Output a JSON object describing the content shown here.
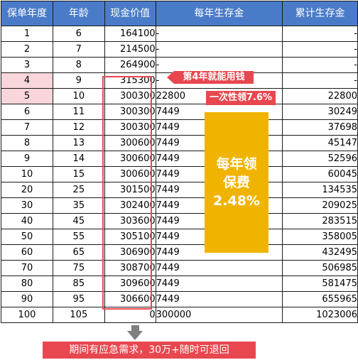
{
  "table": {
    "headers": [
      "保单年度",
      "年龄",
      "现金价值",
      "每年生存金",
      "累计生存金"
    ],
    "rows": [
      [
        "1",
        "6",
        "164100",
        "-",
        "-"
      ],
      [
        "2",
        "7",
        "214500",
        "-",
        "-"
      ],
      [
        "3",
        "8",
        "264900",
        "-",
        "-"
      ],
      [
        "4",
        "9",
        "315300",
        "-",
        "-"
      ],
      [
        "5",
        "10",
        "300300",
        "22800",
        "22800"
      ],
      [
        "6",
        "11",
        "300300",
        "7449",
        "30249"
      ],
      [
        "7",
        "12",
        "300300",
        "7449",
        "37698"
      ],
      [
        "8",
        "13",
        "300600",
        "7449",
        "45147"
      ],
      [
        "9",
        "14",
        "300600",
        "7449",
        "52596"
      ],
      [
        "10",
        "15",
        "300600",
        "7449",
        "60045"
      ],
      [
        "20",
        "25",
        "301500",
        "7449",
        "134535"
      ],
      [
        "30",
        "35",
        "302400",
        "7449",
        "209025"
      ],
      [
        "40",
        "45",
        "303600",
        "7449",
        "283515"
      ],
      [
        "50",
        "55",
        "305100",
        "7449",
        "358005"
      ],
      [
        "60",
        "65",
        "306900",
        "7449",
        "432495"
      ],
      [
        "70",
        "75",
        "308700",
        "7449",
        "506985"
      ],
      [
        "80",
        "85",
        "309600",
        "7449",
        "581475"
      ],
      [
        "90",
        "95",
        "306600",
        "7449",
        "655965"
      ],
      [
        "100",
        "105",
        "0",
        "300000",
        "1023006"
      ]
    ],
    "highlighted_rows": [
      3,
      4
    ]
  },
  "annotations": {
    "year4_callout": "第4年就能用钱",
    "lump_sum_callout": "一次性领7.6%",
    "annual_box_line1": "每年领",
    "annual_box_line2": "保费",
    "annual_box_line3": "2.48%",
    "bottom_note": "期间有应急需求，30万+随时可退回"
  },
  "colors": {
    "header_bg": "#4a7bc8",
    "highlight_pink": "#f9d5dc",
    "accent_red": "#e8474f",
    "gold": "#f0b400",
    "arrow_gray": "#7f7f7f"
  }
}
